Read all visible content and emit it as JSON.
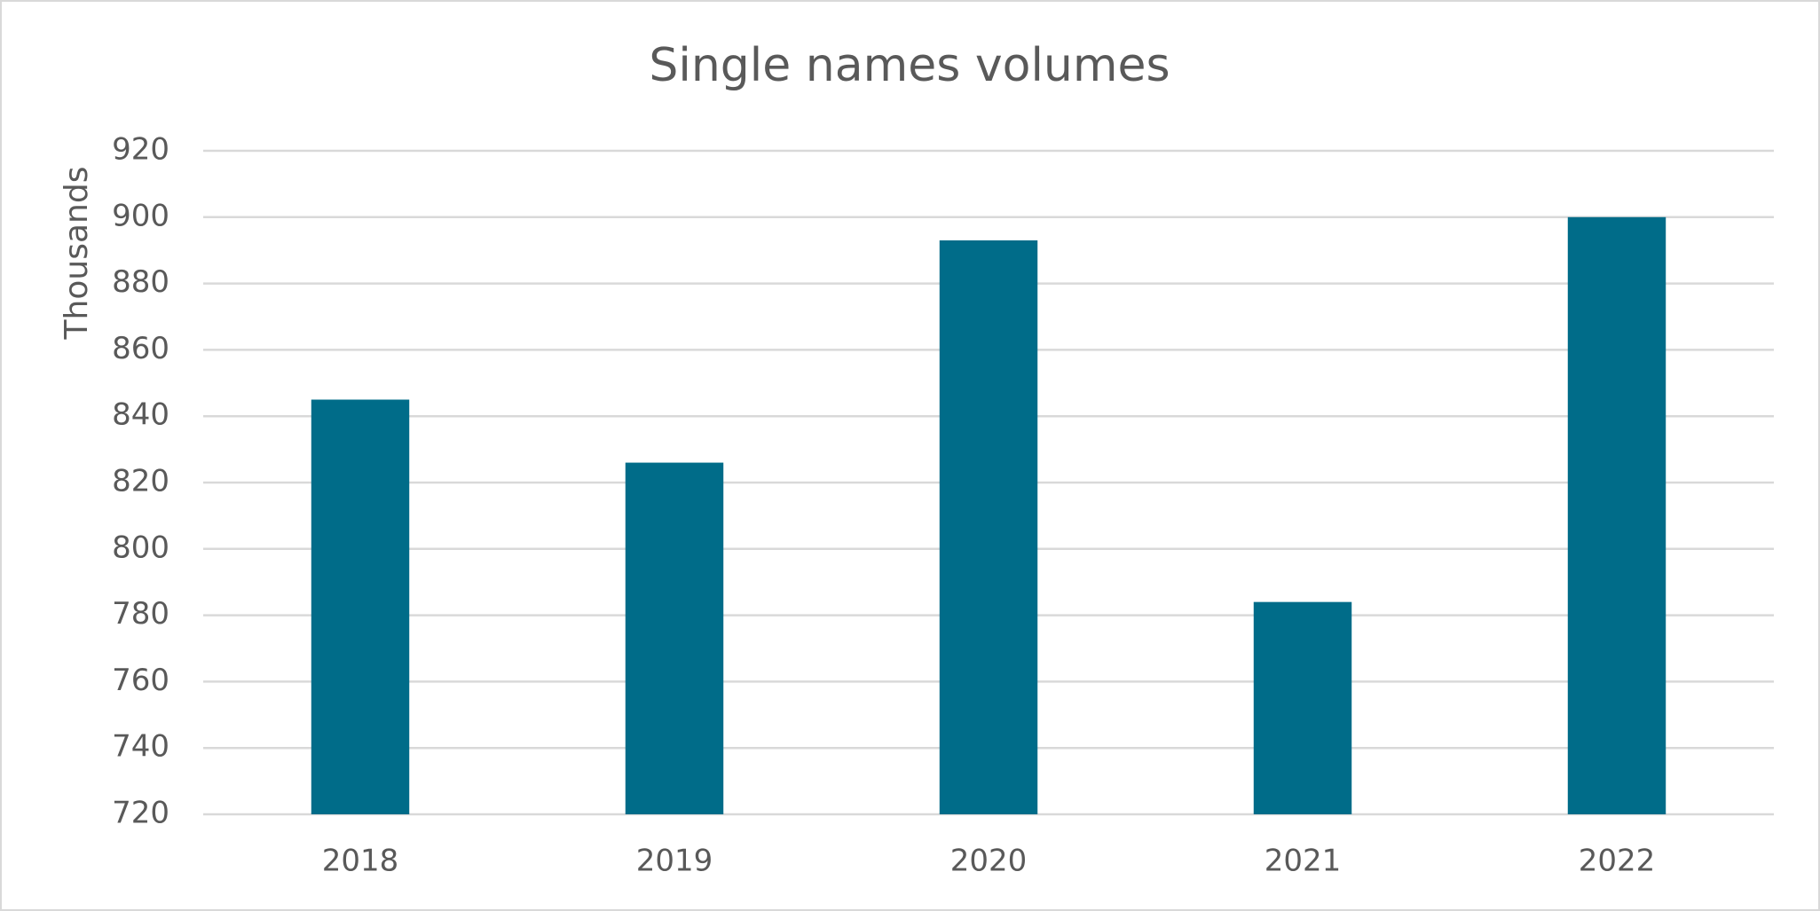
{
  "chart_data": {
    "type": "bar",
    "title": "Single names volumes",
    "y_label": "Thousands",
    "categories": [
      "2018",
      "2019",
      "2020",
      "2021",
      "2022"
    ],
    "values": [
      845,
      826,
      893,
      784,
      900
    ],
    "color": "#006c89",
    "ylim": [
      720,
      920
    ],
    "yticks": [
      720,
      740,
      760,
      780,
      800,
      820,
      840,
      860,
      880,
      900,
      920
    ],
    "grid": true
  }
}
